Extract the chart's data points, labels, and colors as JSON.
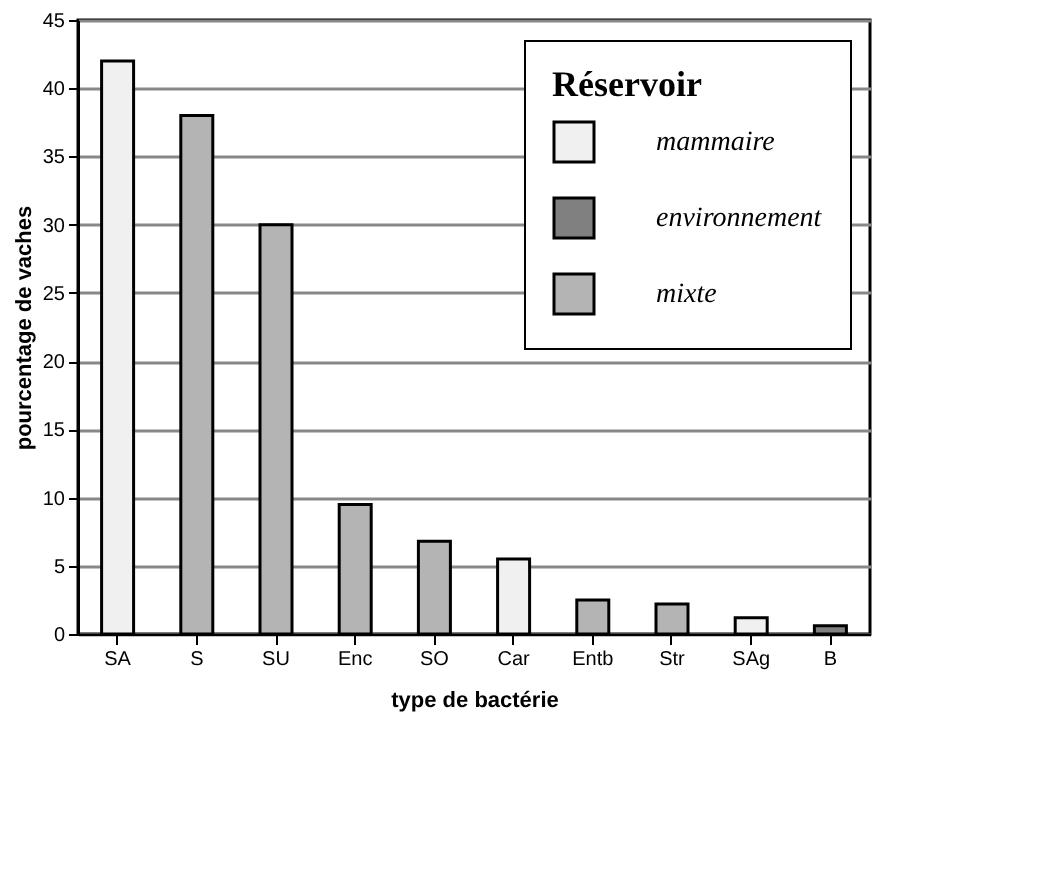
{
  "chart_data": {
    "type": "bar",
    "xlabel": "type de bactérie",
    "ylabel": "pourcentage de vaches",
    "legend_title": "Réservoir",
    "categories": [
      "SA",
      "S",
      "SU",
      "Enc",
      "SO",
      "Car",
      "Entb",
      "Str",
      "SAg",
      "B"
    ],
    "series": [
      {
        "name": "mammaire",
        "color": "#f0f0f0",
        "values": [
          42,
          null,
          null,
          null,
          null,
          5.5,
          null,
          null,
          1.2,
          null
        ]
      },
      {
        "name": "environnement",
        "color": "#808080",
        "values": [
          null,
          null,
          null,
          null,
          null,
          null,
          null,
          null,
          null,
          0.6
        ]
      },
      {
        "name": "mixte",
        "color": "#b4b4b4",
        "values": [
          null,
          38,
          30,
          9.5,
          6.8,
          null,
          2.5,
          2.2,
          null,
          null
        ]
      }
    ],
    "ylim": [
      0,
      45
    ],
    "yticks": [
      0,
      5,
      10,
      15,
      20,
      25,
      30,
      35,
      40,
      45
    ],
    "grid": "y",
    "legend": "top right"
  }
}
